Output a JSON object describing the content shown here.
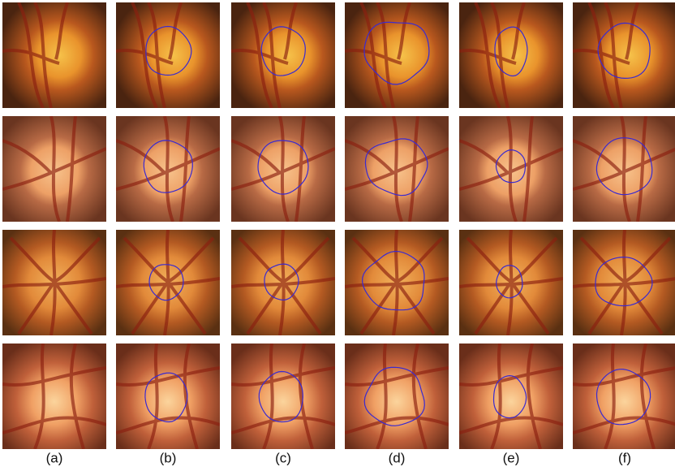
{
  "columns": [
    "(a)",
    "(b)",
    "(c)",
    "(d)",
    "(e)",
    "(f)"
  ]
}
